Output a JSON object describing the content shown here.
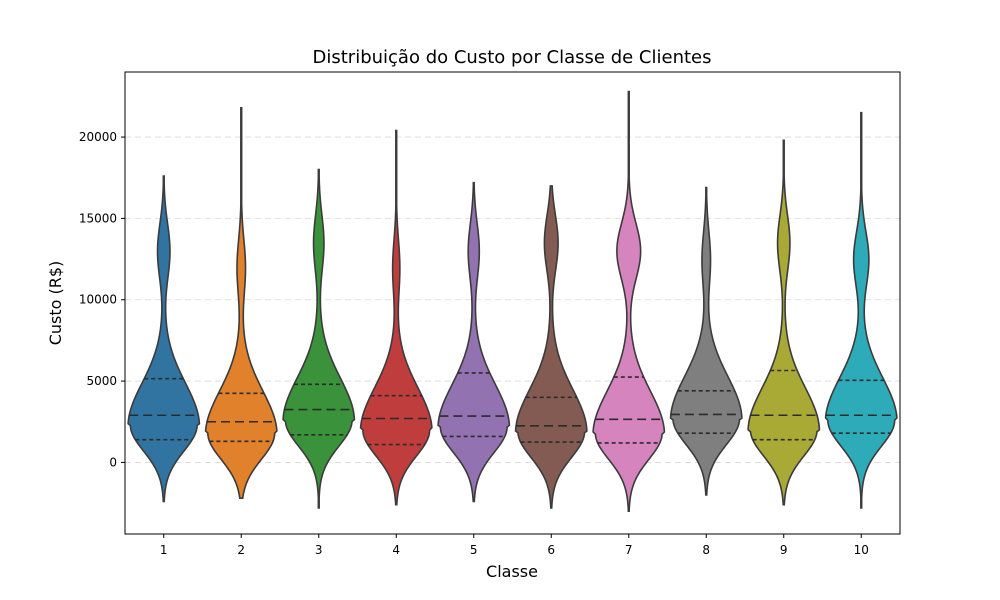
{
  "chart_data": {
    "type": "violin",
    "title": "Distribuição do Custo por Classe de Clientes",
    "xlabel": "Classe",
    "ylabel": "Custo (R$)",
    "categories": [
      "1",
      "2",
      "3",
      "4",
      "5",
      "6",
      "7",
      "8",
      "9",
      "10"
    ],
    "yticks": [
      0,
      5000,
      10000,
      15000,
      20000
    ],
    "ytick_labels": [
      "0",
      "5000",
      "10000",
      "15000",
      "20000"
    ],
    "ylim": [
      -4400,
      24000
    ],
    "grid": "horizontal dashed",
    "inner": "quartile",
    "colors": [
      "#3274a1",
      "#e1812c",
      "#3a923a",
      "#c03d3e",
      "#9372b2",
      "#845b53",
      "#d684bd",
      "#7f7f7f",
      "#a9aa35",
      "#2eabb8"
    ],
    "series": [
      {
        "min": -2400,
        "max": 17600,
        "q1": 1400,
        "median": 2900,
        "q3": 5150,
        "mode": 2300,
        "secondary": [
          13000,
          0.18
        ]
      },
      {
        "min": -2200,
        "max": 21800,
        "q1": 1300,
        "median": 2500,
        "q3": 4250,
        "mode": 1800,
        "secondary": [
          12000,
          0.12
        ]
      },
      {
        "min": -2800,
        "max": 18000,
        "q1": 1700,
        "median": 3250,
        "q3": 4800,
        "mode": 2600,
        "secondary": [
          13500,
          0.15
        ]
      },
      {
        "min": -2600,
        "max": 20400,
        "q1": 1100,
        "median": 2700,
        "q3": 4100,
        "mode": 2000,
        "secondary": [
          12000,
          0.1
        ]
      },
      {
        "min": -2400,
        "max": 17200,
        "q1": 1600,
        "median": 2850,
        "q3": 5500,
        "mode": 2200,
        "secondary": [
          13000,
          0.16
        ]
      },
      {
        "min": -2800,
        "max": 17000,
        "q1": 1250,
        "median": 2250,
        "q3": 4000,
        "mode": 1900,
        "secondary": [
          13500,
          0.2
        ]
      },
      {
        "min": -3000,
        "max": 22800,
        "q1": 1200,
        "median": 2650,
        "q3": 5250,
        "mode": 1800,
        "secondary": [
          13000,
          0.35
        ]
      },
      {
        "min": -2000,
        "max": 16900,
        "q1": 1800,
        "median": 2950,
        "q3": 4400,
        "mode": 2700,
        "secondary": [
          12500,
          0.12
        ]
      },
      {
        "min": -2600,
        "max": 19800,
        "q1": 1400,
        "median": 2900,
        "q3": 5650,
        "mode": 2000,
        "secondary": [
          13500,
          0.18
        ]
      },
      {
        "min": -2800,
        "max": 21500,
        "q1": 1800,
        "median": 2900,
        "q3": 5050,
        "mode": 2600,
        "secondary": [
          12500,
          0.22
        ]
      }
    ]
  }
}
